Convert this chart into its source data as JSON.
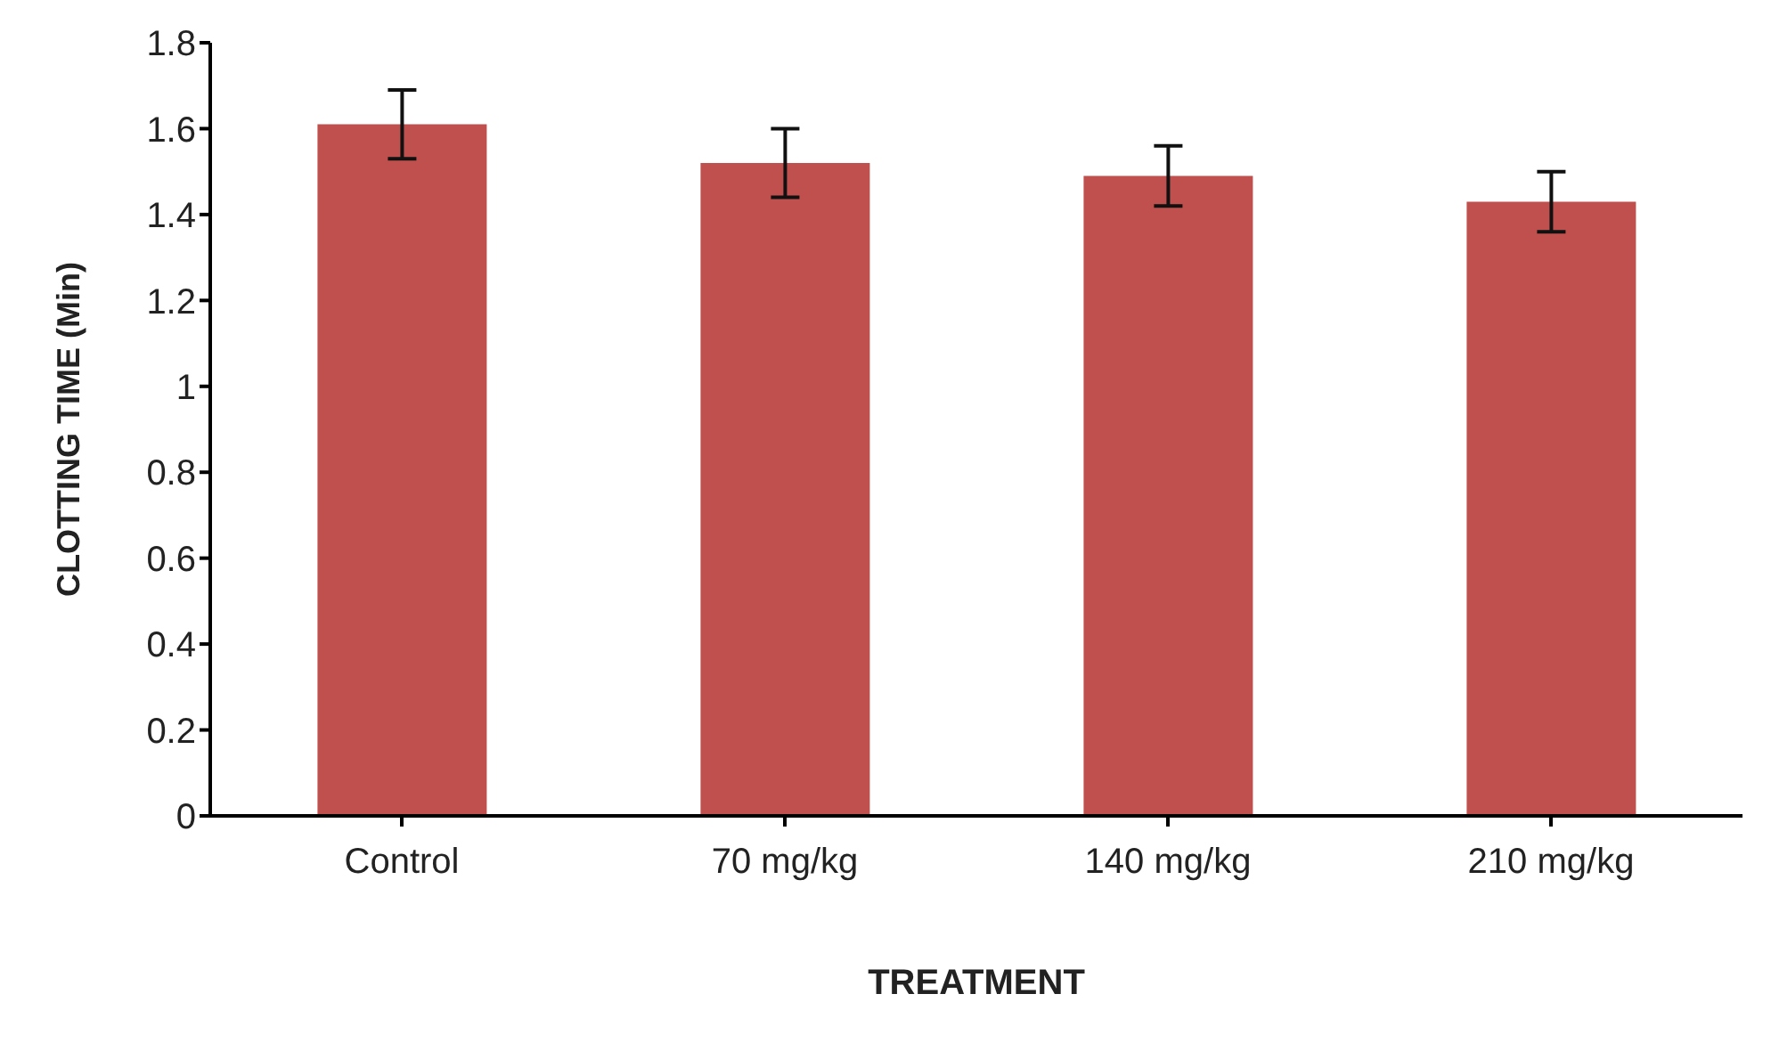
{
  "chart_data": {
    "type": "bar",
    "xlabel": "TREATMENT",
    "ylabel": "CLOTTING TIME (Min)",
    "categories": [
      "Control",
      "70 mg/kg",
      "140 mg/kg",
      "210 mg/kg"
    ],
    "values": [
      1.61,
      1.52,
      1.49,
      1.43
    ],
    "errors": [
      0.08,
      0.08,
      0.07,
      0.07
    ],
    "color": "#c0504d",
    "ylim": [
      0,
      1.8
    ],
    "yticks": [
      0,
      0.2,
      0.4,
      0.6,
      0.8,
      1,
      1.2,
      1.4,
      1.6,
      1.8
    ],
    "grid": false,
    "legend": false
  }
}
